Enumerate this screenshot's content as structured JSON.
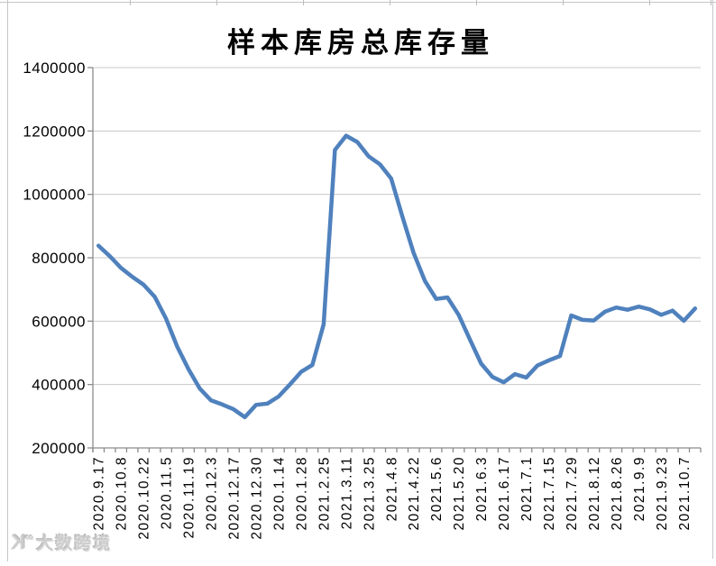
{
  "title": "样本库房总库存量",
  "watermark": {
    "logo_letter": "K",
    "logo_symbol": "∞",
    "text": "大数跨境"
  },
  "colors": {
    "line": "#4F81BD",
    "grid": "#c8c8c8",
    "axis": "#8c8c8c",
    "tick_label": "#000000",
    "border": "#c6c6c6",
    "watermark": "#cdcdcd"
  },
  "chart_data": {
    "type": "line",
    "title": "样本库房总库存量",
    "x_labels": [
      "2020.9.17",
      "2020.10.8",
      "2020.10.22",
      "2020.11.5",
      "2020.11.19",
      "2020.12.3",
      "2020.12.17",
      "2020.12.30",
      "2020.1.14",
      "2020.1.28",
      "2021.2.25",
      "2021.3.11",
      "2021.3.25",
      "2021.4.8",
      "2021.4.22",
      "2021.5.6",
      "2021.5.20",
      "2021.6.3",
      "2021.6.17",
      "2021.7.1",
      "2021.7.15",
      "2021.7.29",
      "2021.8.12",
      "2021.8.26",
      "2021.9.9",
      "2021.9.23",
      "2021.10.7"
    ],
    "x_label_every_n_points": 2,
    "values": [
      838000,
      805000,
      768000,
      740000,
      715000,
      677000,
      608000,
      519000,
      448000,
      387000,
      350000,
      337000,
      322000,
      297000,
      336000,
      340000,
      362000,
      400000,
      440000,
      462000,
      590000,
      1140000,
      1185000,
      1165000,
      1120000,
      1095000,
      1050000,
      930000,
      815000,
      727000,
      670000,
      675000,
      620000,
      542000,
      466000,
      424000,
      407000,
      433000,
      422000,
      460000,
      476000,
      490000,
      618000,
      604000,
      602000,
      630000,
      643000,
      636000,
      646000,
      637000,
      620000,
      633000,
      601000,
      640000
    ],
    "ylim": [
      200000,
      1400000
    ],
    "y_ticks": [
      200000,
      400000,
      600000,
      800000,
      1000000,
      1200000,
      1400000
    ],
    "grid": "horizontal",
    "legend": "none"
  }
}
